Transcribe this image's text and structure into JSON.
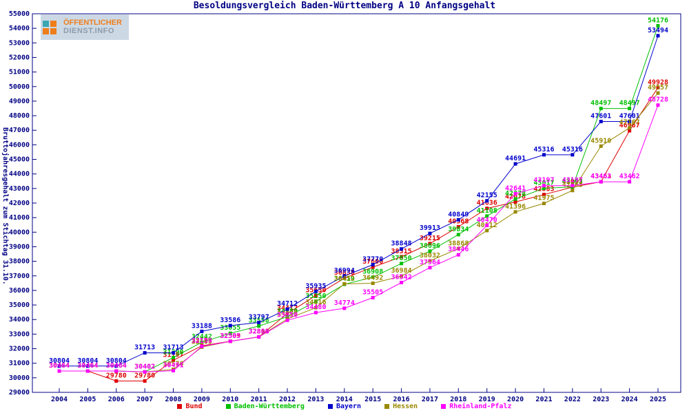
{
  "title": "Besoldungsvergleich Baden-Württemberg A 10 Anfangsgehalt",
  "logo": {
    "line1": "ÖFFENTLICHER",
    "line2": "DIENST.INFO",
    "orange": "#ef7d1a",
    "teal": "#3aa6b0",
    "background": "#ccd9e5"
  },
  "frame_color": "#000084",
  "y_axis": {
    "label": "Bruttojahresgehalt zum Stichtag 31.10.",
    "min": 29000,
    "max": 55000,
    "step": 1000
  },
  "chart_data": {
    "type": "line",
    "title": "Besoldungsvergleich Baden-Württemberg A 10 Anfangsgehalt",
    "ylabel": "Bruttojahresgehalt zum Stichtag 31.10.",
    "ylim": [
      29000,
      55000
    ],
    "grid": false,
    "legend_position": "bottom",
    "x": [
      2004,
      2005,
      2006,
      2007,
      2008,
      2009,
      2010,
      2011,
      2012,
      2013,
      2014,
      2015,
      2016,
      2017,
      2018,
      2019,
      2020,
      2021,
      2022,
      2023,
      2024,
      2025
    ],
    "series": [
      {
        "name": "Bund",
        "color": "#dd0000",
        "values": [
          30464,
          30464,
          29780,
          29780,
          31197,
          32199,
          32509,
          32806,
          34412,
          35650,
          36838,
          37600,
          38315,
          39215,
          40368,
          41636,
          42078,
          42583,
          43093,
          43463,
          46967,
          49928
        ]
      },
      {
        "name": "Baden-Württemberg",
        "color": "#00c000",
        "values": [
          30464,
          30464,
          30464,
          30402,
          31390,
          32442,
          33055,
          33558,
          34189,
          35250,
          36419,
          36908,
          37850,
          38696,
          39834,
          41108,
          42278,
          43017,
          43103,
          48497,
          48497,
          54176
        ]
      },
      {
        "name": "Bayern",
        "color": "#0000cc",
        "values": [
          30804,
          30804,
          30804,
          31713,
          31713,
          33188,
          33586,
          33797,
          34712,
          35935,
          36994,
          37770,
          38848,
          39913,
          40849,
          42155,
          44691,
          45316,
          45316,
          47601,
          47601,
          53494
        ]
      },
      {
        "name": "Hessen",
        "color": "#998800",
        "values": [
          30464,
          30464,
          30464,
          30402,
          30576,
          32105,
          32505,
          32813,
          34039,
          34816,
          36452,
          36492,
          36984,
          38032,
          38868,
          40112,
          41396,
          41975,
          42863,
          45910,
          47167,
          49557
        ]
      },
      {
        "name": "Rheinland-Pfalz",
        "color": "#ff00ff",
        "values": [
          30464,
          30464,
          30464,
          30402,
          30491,
          32159,
          32505,
          32806,
          33950,
          34480,
          34774,
          35505,
          36542,
          37564,
          38446,
          40470,
          42641,
          43197,
          43197,
          43462,
          43462,
          48728
        ]
      }
    ]
  }
}
